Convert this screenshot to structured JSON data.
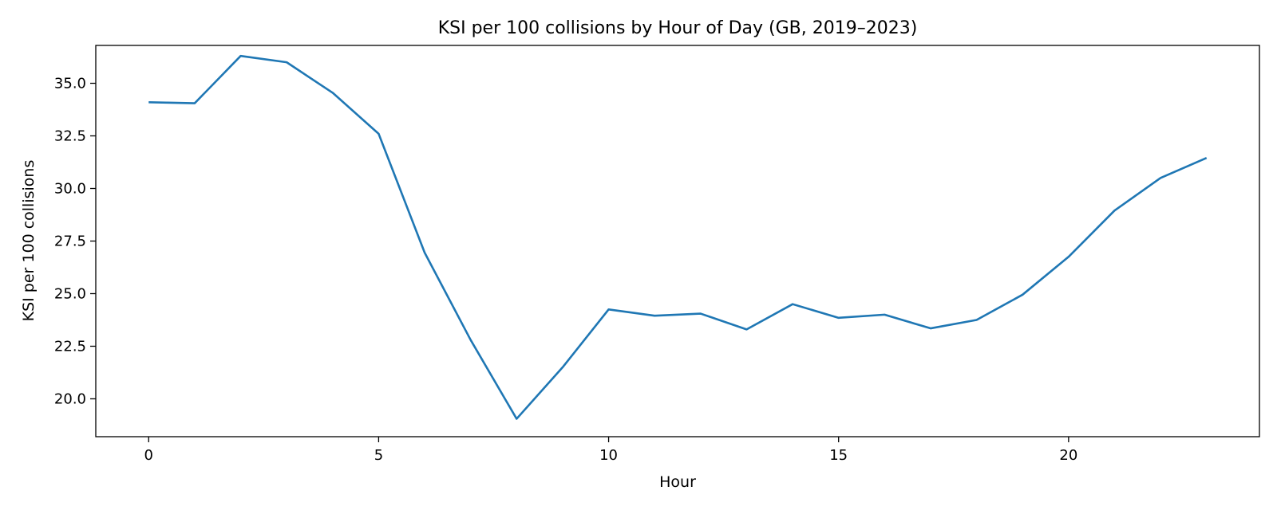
{
  "chart_data": {
    "type": "line",
    "title": "KSI per 100 collisions by Hour of Day (GB, 2019–2023)",
    "xlabel": "Hour",
    "ylabel": "KSI per 100 collisions",
    "xlim": [
      -1.15,
      24.15
    ],
    "ylim": [
      18.2,
      36.8
    ],
    "x_ticks": [
      0,
      5,
      10,
      15,
      20
    ],
    "x_tick_labels": [
      "0",
      "5",
      "10",
      "15",
      "20"
    ],
    "y_ticks": [
      20.0,
      22.5,
      25.0,
      27.5,
      30.0,
      32.5,
      35.0
    ],
    "y_tick_labels": [
      "20.0",
      "22.5",
      "25.0",
      "27.5",
      "30.0",
      "32.5",
      "35.0"
    ],
    "grid": false,
    "series": [
      {
        "color": "#1f77b4",
        "x": [
          0,
          1,
          2,
          3,
          4,
          5,
          6,
          7,
          8,
          9,
          10,
          11,
          12,
          13,
          14,
          15,
          16,
          17,
          18,
          19,
          20,
          21,
          22,
          23
        ],
        "y": [
          34.1,
          34.05,
          36.3,
          36.0,
          34.55,
          32.6,
          26.95,
          22.8,
          19.05,
          21.5,
          24.25,
          23.95,
          24.05,
          23.3,
          24.5,
          23.85,
          24.0,
          23.35,
          23.75,
          24.95,
          26.75,
          28.95,
          30.5,
          31.45
        ]
      }
    ]
  }
}
